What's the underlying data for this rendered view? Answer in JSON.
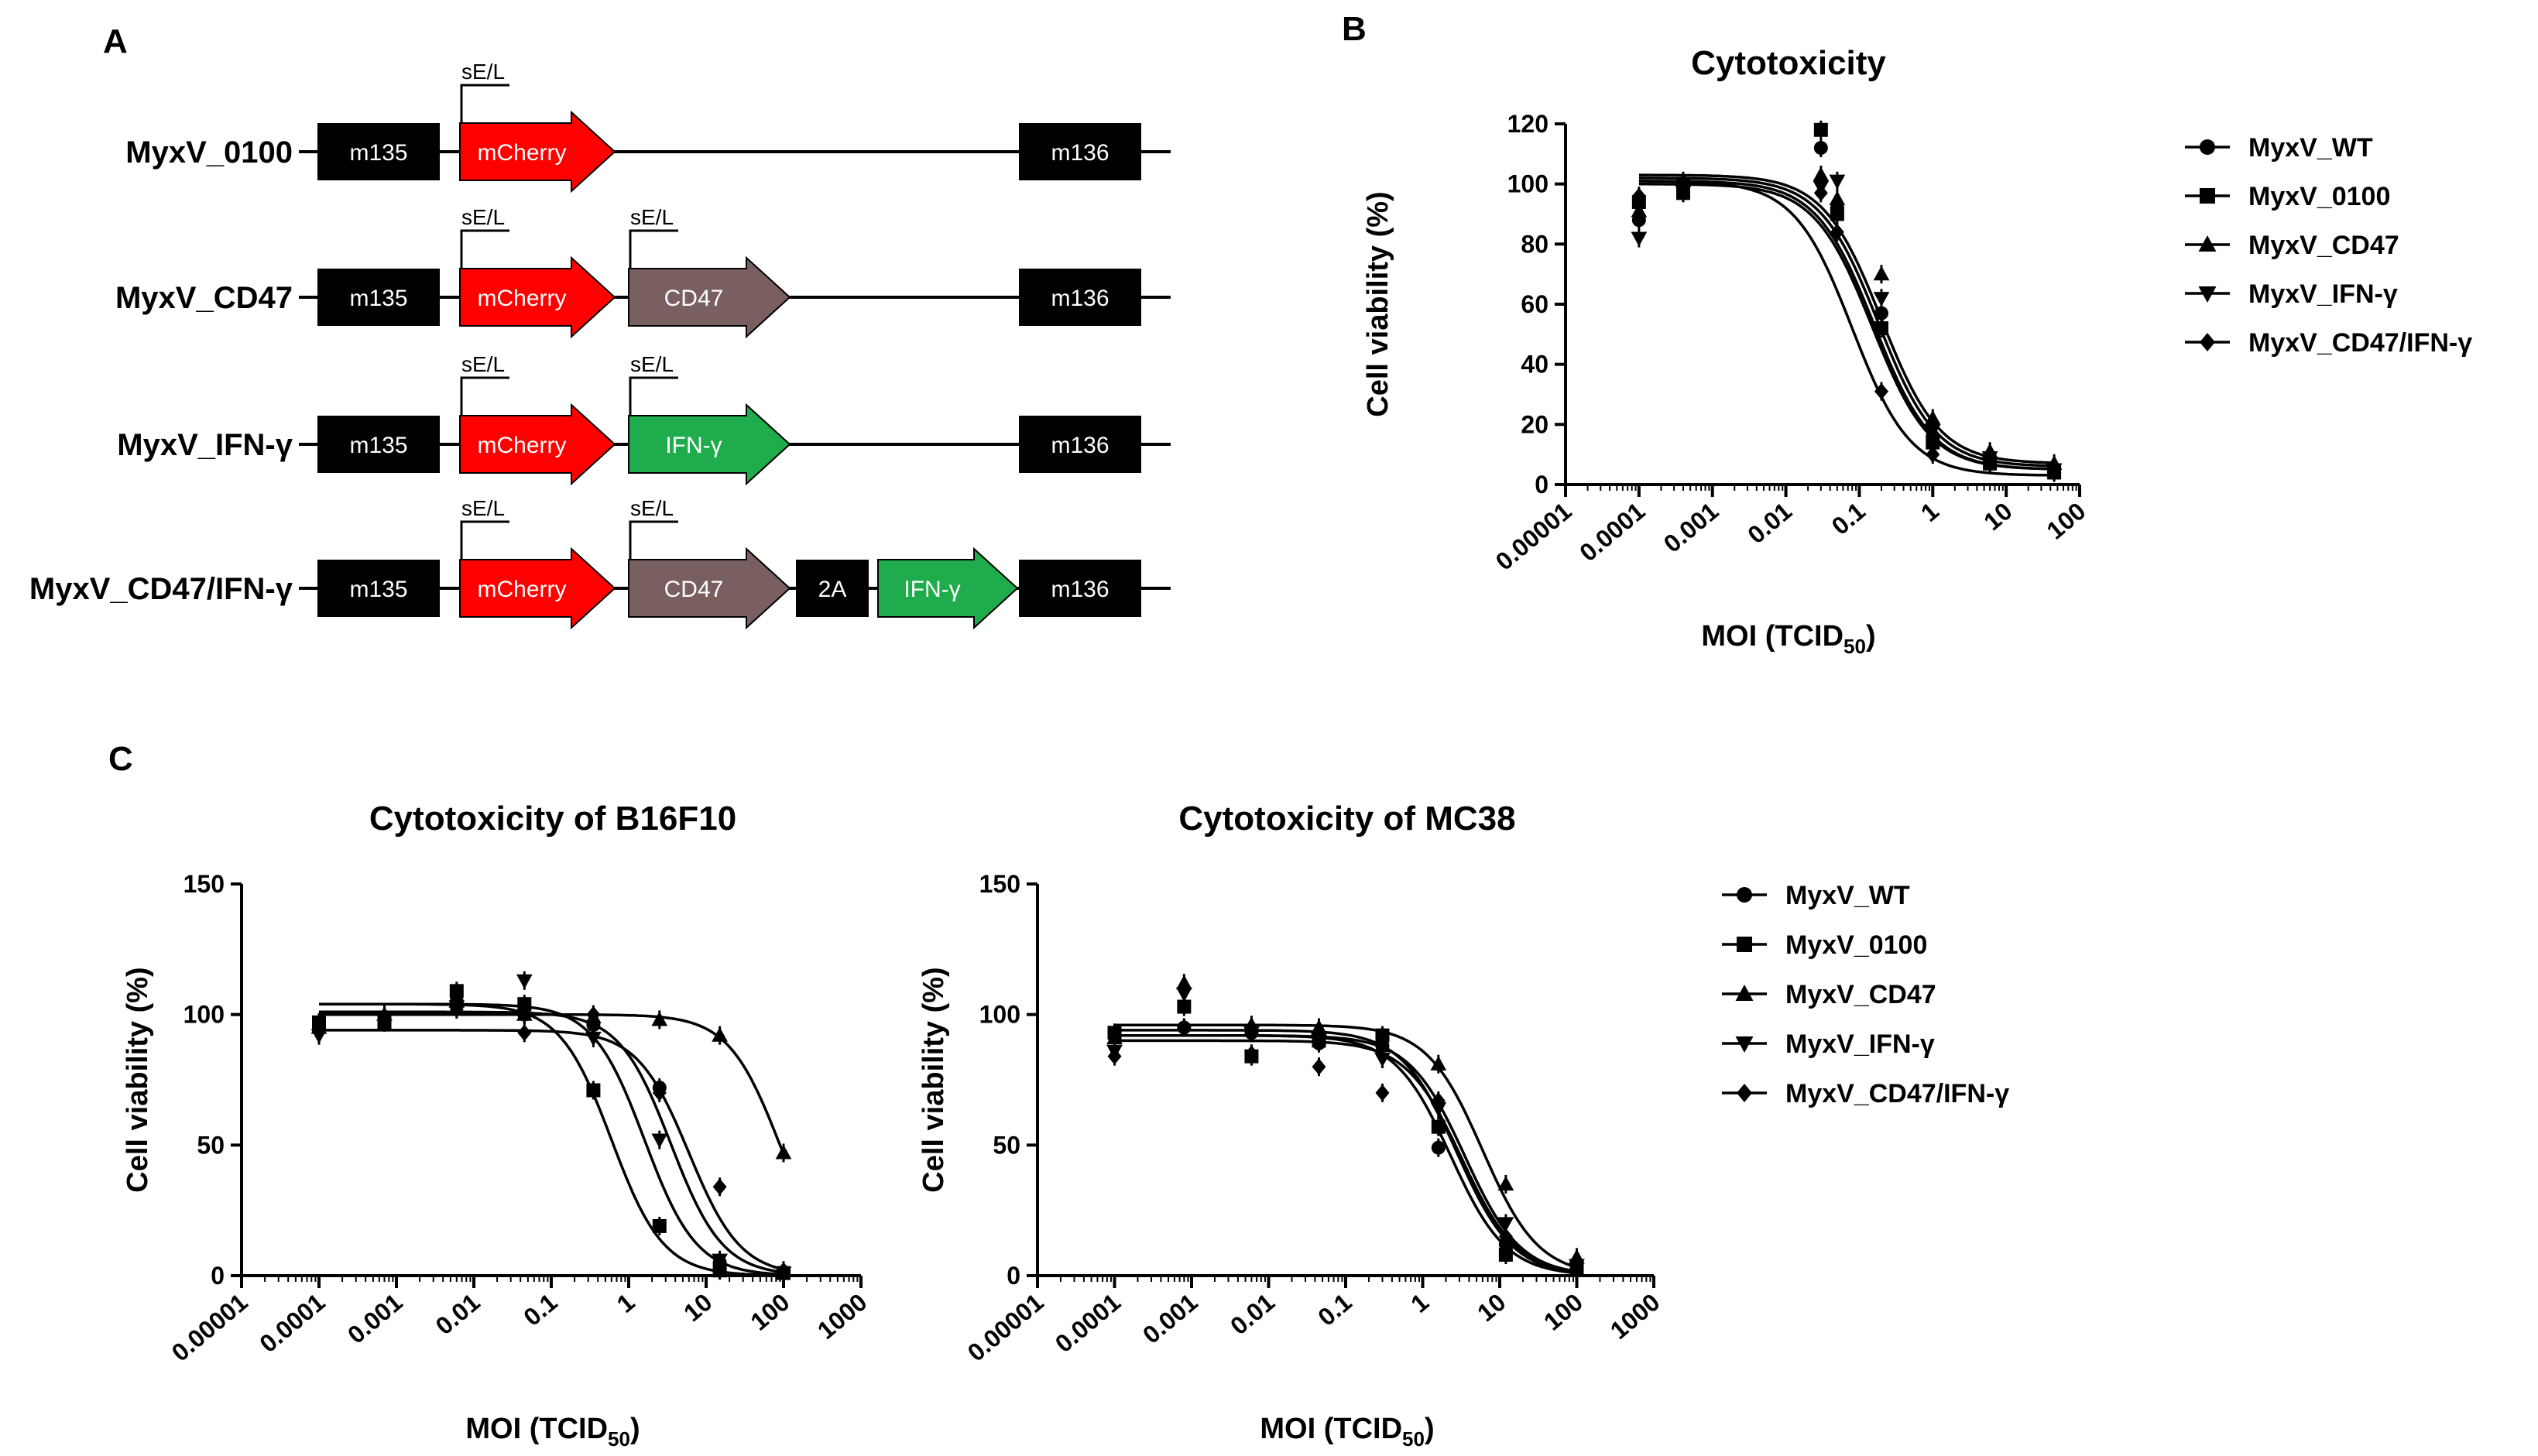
{
  "panels": [
    {
      "letter": "A"
    },
    {
      "letter": "B"
    },
    {
      "letter": "C"
    }
  ],
  "panel_a": {
    "promoter_label": "sE/L",
    "constructs": [
      {
        "name": "MyxV_0100",
        "elements": [
          {
            "label": "m135",
            "type": "box",
            "color": "#000000"
          },
          {
            "label": "mCherry",
            "type": "arrow",
            "color": "#ff0000",
            "promoter": true
          },
          {
            "label": "m136",
            "type": "box",
            "color": "#000000"
          }
        ]
      },
      {
        "name": "MyxV_CD47",
        "elements": [
          {
            "label": "m135",
            "type": "box",
            "color": "#000000"
          },
          {
            "label": "mCherry",
            "type": "arrow",
            "color": "#ff0000",
            "promoter": true
          },
          {
            "label": "CD47",
            "type": "arrow",
            "color": "#7a5f61",
            "promoter": true
          },
          {
            "label": "m136",
            "type": "box",
            "color": "#000000"
          }
        ]
      },
      {
        "name": "MyxV_IFN-γ",
        "elements": [
          {
            "label": "m135",
            "type": "box",
            "color": "#000000"
          },
          {
            "label": "mCherry",
            "type": "arrow",
            "color": "#ff0000",
            "promoter": true
          },
          {
            "label": "IFN-γ",
            "type": "arrow",
            "color": "#1fac4c",
            "promoter": true
          },
          {
            "label": "m136",
            "type": "box",
            "color": "#000000"
          }
        ]
      },
      {
        "name": "MyxV_CD47/IFN-γ",
        "elements": [
          {
            "label": "m135",
            "type": "box",
            "color": "#000000"
          },
          {
            "label": "mCherry",
            "type": "arrow",
            "color": "#ff0000",
            "promoter": true
          },
          {
            "label": "CD47",
            "type": "arrow",
            "color": "#7a5f61",
            "promoter": true
          },
          {
            "label": "2A",
            "type": "box",
            "color": "#000000"
          },
          {
            "label": "IFN-γ",
            "type": "arrow",
            "color": "#1fac4c"
          },
          {
            "label": "m136",
            "type": "box",
            "color": "#000000"
          }
        ]
      }
    ]
  },
  "chart_data": [
    {
      "id": "B",
      "type": "scatter",
      "title": "Cytotoxicity",
      "xlabel_main": "MOI (TCID",
      "xlabel_sub": "50",
      "xlabel_close": ")",
      "ylabel": "Cell viability (%)",
      "x_scale": "log",
      "xlim": [
        1e-05,
        100
      ],
      "ylim": [
        0,
        120
      ],
      "x_ticks": [
        1e-05,
        0.0001,
        0.001,
        0.01,
        0.1,
        1,
        10,
        100
      ],
      "x_tick_labels": [
        "0.00001",
        "0.0001",
        "0.001",
        "0.01",
        "0.1",
        "1",
        "10",
        "100"
      ],
      "y_ticks": [
        0,
        20,
        40,
        60,
        80,
        100,
        120
      ],
      "y_tick_labels": [
        "0",
        "20",
        "40",
        "60",
        "80",
        "100",
        "120"
      ],
      "x": [
        0.0001,
        0.001,
        0.01,
        0.1,
        1,
        10,
        100
      ],
      "legend_position": "right",
      "series": [
        {
          "name": "MyxV_WT",
          "marker": "circle",
          "values": [
            88,
            100,
            112,
            92,
            57,
            16,
            8,
            4
          ],
          "x_pts": [
            0.0001,
            0.0004,
            0.03,
            0.05,
            0.2,
            1,
            6,
            45
          ],
          "fit": {
            "top": 101,
            "bottom": 5,
            "ec50": 0.16,
            "hill": 1.1
          }
        },
        {
          "name": "MyxV_0100",
          "marker": "square",
          "values": [
            94,
            97,
            118,
            90,
            52,
            14,
            7,
            4
          ],
          "x_pts": [
            0.0001,
            0.0004,
            0.03,
            0.05,
            0.2,
            1,
            6,
            45
          ],
          "fit": {
            "top": 100,
            "bottom": 5,
            "ec50": 0.15,
            "hill": 1.1
          }
        },
        {
          "name": "MyxV_CD47",
          "marker": "triangle-up",
          "values": [
            91,
            101,
            103,
            95,
            70,
            22,
            11,
            7
          ],
          "x_pts": [
            0.0001,
            0.0004,
            0.03,
            0.05,
            0.2,
            1,
            6,
            45
          ],
          "fit": {
            "top": 103,
            "bottom": 7,
            "ec50": 0.2,
            "hill": 1.1
          }
        },
        {
          "name": "MyxV_IFN-γ",
          "marker": "triangle-down",
          "values": [
            82,
            100,
            99,
            101,
            62,
            18,
            9,
            5
          ],
          "x_pts": [
            0.0001,
            0.0004,
            0.03,
            0.05,
            0.2,
            1,
            6,
            45
          ],
          "fit": {
            "top": 102,
            "bottom": 6,
            "ec50": 0.18,
            "hill": 1.1
          }
        },
        {
          "name": "MyxV_CD47/IFN-γ",
          "marker": "diamond",
          "values": [
            96,
            100,
            97,
            84,
            31,
            10,
            7,
            6
          ],
          "x_pts": [
            0.0001,
            0.0004,
            0.03,
            0.05,
            0.2,
            1,
            6,
            45
          ],
          "fit": {
            "top": 101,
            "bottom": 3,
            "ec50": 0.08,
            "hill": 1.1
          }
        }
      ]
    },
    {
      "id": "C1",
      "type": "scatter",
      "title": "Cytotoxicity of B16F10",
      "xlabel_main": "MOI (TCID",
      "xlabel_sub": "50",
      "xlabel_close": ")",
      "ylabel": "Cell viability (%)",
      "x_scale": "log",
      "xlim": [
        1e-05,
        1000
      ],
      "ylim": [
        0,
        150
      ],
      "x_ticks": [
        1e-05,
        0.0001,
        0.001,
        0.01,
        0.1,
        1,
        10,
        100,
        1000
      ],
      "x_tick_labels": [
        "0.00001",
        "0.0001",
        "0.001",
        "0.01",
        "0.1",
        "1",
        "10",
        "100",
        "1000"
      ],
      "y_ticks": [
        0,
        50,
        100,
        150
      ],
      "y_tick_labels": [
        "0",
        "50",
        "100",
        "150"
      ],
      "x_pts": [
        0.0001,
        0.0007,
        0.006,
        0.045,
        0.35,
        2.5,
        15,
        100
      ],
      "series": [
        {
          "name": "MyxV_WT",
          "marker": "circle",
          "values": [
            96,
            99,
            105,
            100,
            96,
            72,
            5,
            1
          ],
          "fit": {
            "top": 101,
            "bottom": 0,
            "ec50": 3.5,
            "hill": 1.3
          }
        },
        {
          "name": "MyxV_0100",
          "marker": "square",
          "values": [
            97,
            97,
            109,
            104,
            71,
            19,
            2,
            1
          ],
          "fit": {
            "top": 104,
            "bottom": 0,
            "ec50": 0.6,
            "hill": 1.3
          }
        },
        {
          "name": "MyxV_CD47",
          "marker": "triangle-up",
          "values": [
            95,
            100,
            105,
            100,
            99,
            98,
            92,
            47
          ],
          "fit": {
            "top": 100,
            "bottom": 0,
            "ec50": 90,
            "hill": 1.3
          }
        },
        {
          "name": "MyxV_IFN-γ",
          "marker": "triangle-down",
          "values": [
            92,
            99,
            103,
            113,
            91,
            52,
            6,
            1
          ],
          "fit": {
            "top": 104,
            "bottom": 0,
            "ec50": 1.6,
            "hill": 1.3
          }
        },
        {
          "name": "MyxV_CD47/IFN-γ",
          "marker": "diamond",
          "values": [
            95,
            97,
            102,
            93,
            100,
            70,
            34,
            2
          ],
          "fit": {
            "top": 94,
            "bottom": 0,
            "ec50": 6,
            "hill": 1.3
          }
        }
      ]
    },
    {
      "id": "C2",
      "type": "scatter",
      "title": "Cytotoxicity of MC38",
      "xlabel_main": "MOI (TCID",
      "xlabel_sub": "50",
      "xlabel_close": ")",
      "ylabel": "Cell viability (%)",
      "x_scale": "log",
      "xlim": [
        1e-05,
        1000
      ],
      "ylim": [
        0,
        150
      ],
      "x_ticks": [
        1e-05,
        0.0001,
        0.001,
        0.01,
        0.1,
        1,
        10,
        100,
        1000
      ],
      "x_tick_labels": [
        "0.00001",
        "0.0001",
        "0.001",
        "0.01",
        "0.1",
        "1",
        "10",
        "100",
        "1000"
      ],
      "y_ticks": [
        0,
        50,
        100,
        150
      ],
      "y_tick_labels": [
        "0",
        "50",
        "100",
        "150"
      ],
      "x_pts": [
        0.0001,
        0.0008,
        0.006,
        0.045,
        0.3,
        1.6,
        12,
        100
      ],
      "legend_position": "right",
      "series": [
        {
          "name": "MyxV_WT",
          "marker": "circle",
          "values": [
            92,
            95,
            93,
            89,
            88,
            49,
            12,
            3
          ],
          "fit": {
            "top": 92,
            "bottom": 0,
            "ec50": 2.3,
            "hill": 1.2
          }
        },
        {
          "name": "MyxV_0100",
          "marker": "square",
          "values": [
            93,
            103,
            84,
            90,
            92,
            57,
            8,
            3
          ],
          "fit": {
            "top": 94,
            "bottom": 0,
            "ec50": 2.8,
            "hill": 1.2
          }
        },
        {
          "name": "MyxV_CD47",
          "marker": "triangle-up",
          "values": [
            91,
            112,
            96,
            95,
            88,
            81,
            35,
            7
          ],
          "fit": {
            "top": 96,
            "bottom": 0,
            "ec50": 6,
            "hill": 1.2
          }
        },
        {
          "name": "MyxV_IFN-γ",
          "marker": "triangle-down",
          "values": [
            86,
            108,
            93,
            90,
            83,
            64,
            20,
            4
          ],
          "fit": {
            "top": 92,
            "bottom": 0,
            "ec50": 3.5,
            "hill": 1.2
          }
        },
        {
          "name": "MyxV_CD47/IFN-γ",
          "marker": "diamond",
          "values": [
            84,
            95,
            85,
            80,
            70,
            67,
            15,
            5
          ],
          "fit": {
            "top": 90,
            "bottom": 0,
            "ec50": 3.2,
            "hill": 1.2
          }
        }
      ]
    }
  ]
}
